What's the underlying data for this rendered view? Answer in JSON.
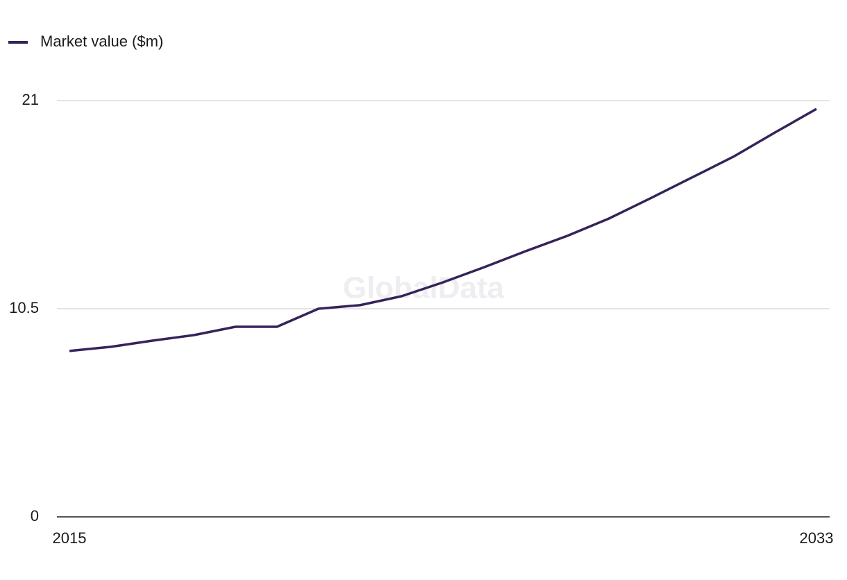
{
  "chart_data": {
    "type": "line",
    "watermark": "GlobalData",
    "x": [
      2015,
      2016,
      2017,
      2018,
      2019,
      2020,
      2021,
      2022,
      2023,
      2024,
      2025,
      2026,
      2027,
      2028,
      2029,
      2030,
      2031,
      2032,
      2033
    ],
    "series": [
      {
        "name": "Market value ($m)",
        "color": "#35235a",
        "values": [
          8.37,
          8.58,
          8.89,
          9.17,
          9.59,
          9.59,
          10.5,
          10.68,
          11.13,
          11.83,
          12.6,
          13.41,
          14.18,
          15.05,
          16.07,
          17.12,
          18.17,
          19.39,
          20.58
        ]
      }
    ],
    "xlim": [
      2015,
      2033
    ],
    "xticks": [
      2015,
      2033
    ],
    "ylim": [
      0,
      21
    ],
    "yticks": [
      0,
      10.5,
      21
    ],
    "grid": true,
    "legend": "top-left"
  }
}
